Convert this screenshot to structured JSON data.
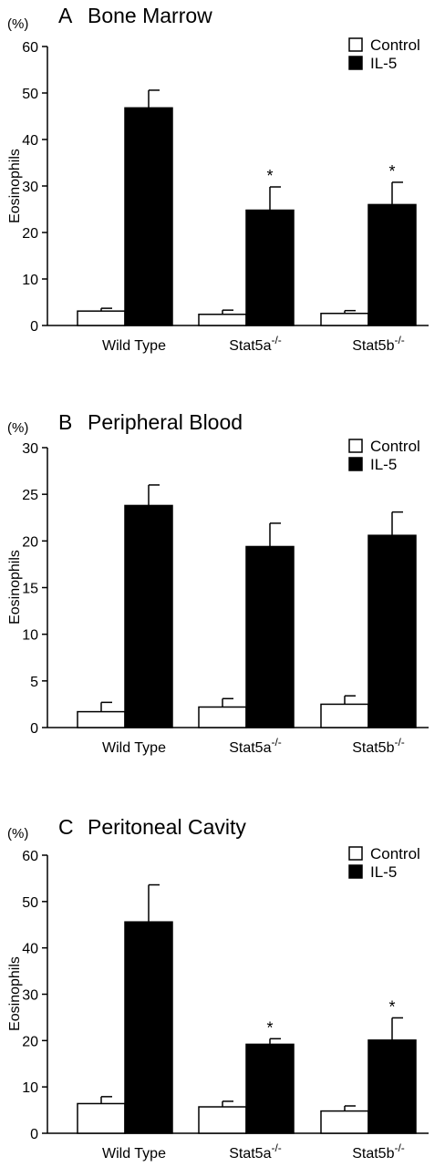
{
  "chart_data": [
    {
      "type": "bar",
      "panel_label": "A",
      "title": "Bone Marrow",
      "unit": "(%)",
      "ylabel": "Eosinophils",
      "ylim": [
        0,
        60
      ],
      "yticks": [
        0,
        10,
        20,
        30,
        40,
        50,
        60
      ],
      "categories": [
        {
          "base": "Wild Type",
          "sup": ""
        },
        {
          "base": "Stat5a",
          "sup": "-/-"
        },
        {
          "base": "Stat5b",
          "sup": "-/-"
        }
      ],
      "series": [
        {
          "name": "Control",
          "fill": "#ffffff",
          "values": [
            3.1,
            2.4,
            2.6
          ],
          "errors": [
            0.6,
            0.9,
            0.6
          ]
        },
        {
          "name": "IL-5",
          "fill": "#000000",
          "values": [
            46.8,
            24.8,
            26.0
          ],
          "errors": [
            3.8,
            5.0,
            4.8
          ]
        }
      ],
      "significance": [
        "",
        "*",
        "*"
      ],
      "legend": "top-right"
    },
    {
      "type": "bar",
      "panel_label": "B",
      "title": "Peripheral Blood",
      "unit": "(%)",
      "ylabel": "Eosinophils",
      "ylim": [
        0,
        30
      ],
      "yticks": [
        0,
        5,
        10,
        15,
        20,
        25,
        30
      ],
      "categories": [
        {
          "base": "Wild Type",
          "sup": ""
        },
        {
          "base": "Stat5a",
          "sup": "-/-"
        },
        {
          "base": "Stat5b",
          "sup": "-/-"
        }
      ],
      "series": [
        {
          "name": "Control",
          "fill": "#ffffff",
          "values": [
            1.7,
            2.2,
            2.5
          ],
          "errors": [
            1.0,
            0.9,
            0.9
          ]
        },
        {
          "name": "IL-5",
          "fill": "#000000",
          "values": [
            23.8,
            19.4,
            20.6
          ],
          "errors": [
            2.2,
            2.5,
            2.5
          ]
        }
      ],
      "significance": [
        "",
        "",
        ""
      ],
      "legend": "top-right"
    },
    {
      "type": "bar",
      "panel_label": "C",
      "title": "Peritoneal Cavity",
      "unit": "(%)",
      "ylabel": "Eosinophils",
      "ylim": [
        0,
        60
      ],
      "yticks": [
        0,
        10,
        20,
        30,
        40,
        50,
        60
      ],
      "categories": [
        {
          "base": "Wild Type",
          "sup": ""
        },
        {
          "base": "Stat5a",
          "sup": "-/-"
        },
        {
          "base": "Stat5b",
          "sup": "-/-"
        }
      ],
      "series": [
        {
          "name": "Control",
          "fill": "#ffffff",
          "values": [
            6.4,
            5.7,
            4.8
          ],
          "errors": [
            1.5,
            1.2,
            1.1
          ]
        },
        {
          "name": "IL-5",
          "fill": "#000000",
          "values": [
            45.6,
            19.2,
            20.1
          ],
          "errors": [
            8.0,
            1.2,
            4.8
          ]
        }
      ],
      "significance": [
        "",
        "*",
        "*"
      ],
      "legend": "top-right"
    }
  ]
}
